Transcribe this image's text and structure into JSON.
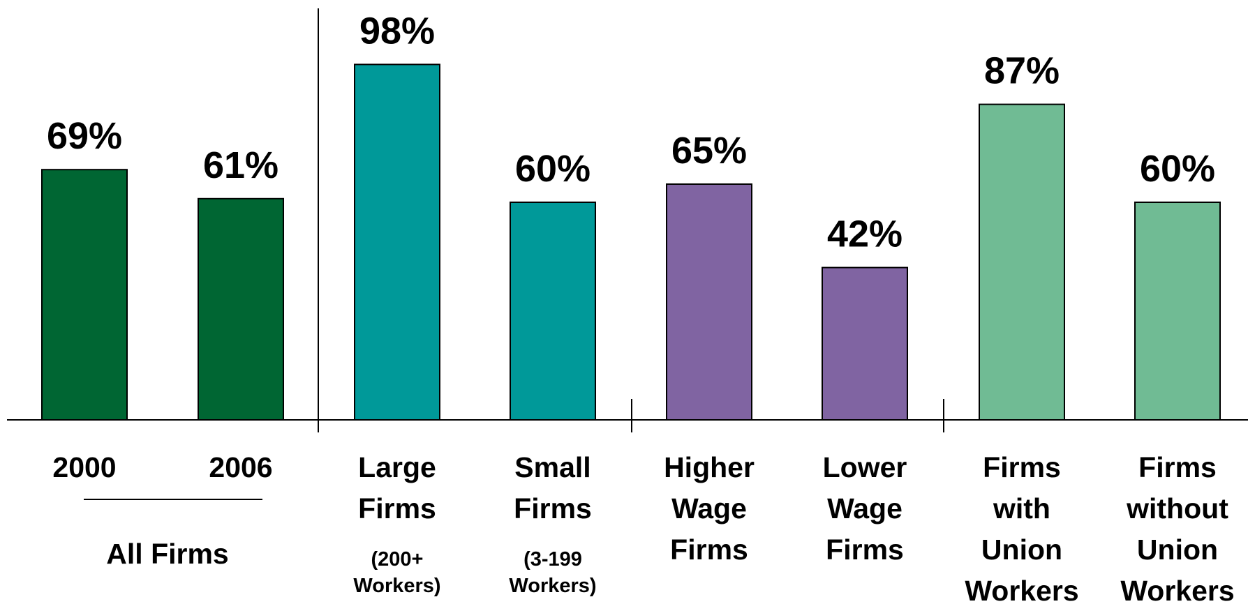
{
  "chart_data": {
    "type": "bar",
    "ylim": [
      0,
      100
    ],
    "grid": false,
    "value_suffix": "%",
    "categories": [
      {
        "lines": [
          "2000"
        ],
        "note": [],
        "value": 69,
        "color": "#006633"
      },
      {
        "lines": [
          "2006"
        ],
        "note": [],
        "value": 61,
        "color": "#006633"
      },
      {
        "lines": [
          "Large",
          "Firms"
        ],
        "note": [
          "(200+",
          "Workers)"
        ],
        "value": 98,
        "color": "#009999"
      },
      {
        "lines": [
          "Small",
          "Firms"
        ],
        "note": [
          "(3-199",
          "Workers)"
        ],
        "value": 60,
        "color": "#009999"
      },
      {
        "lines": [
          "Higher",
          "Wage",
          "Firms"
        ],
        "note": [],
        "value": 65,
        "color": "#8064A2"
      },
      {
        "lines": [
          "Lower",
          "Wage",
          "Firms"
        ],
        "note": [],
        "value": 42,
        "color": "#8064A2"
      },
      {
        "lines": [
          "Firms",
          "with",
          "Union",
          "Workers"
        ],
        "note": [],
        "value": 87,
        "color": "#70BB94"
      },
      {
        "lines": [
          "Firms",
          "without",
          "Union",
          "Workers"
        ],
        "note": [],
        "value": 60,
        "color": "#70BB94"
      }
    ],
    "group_label": "All Firms"
  }
}
